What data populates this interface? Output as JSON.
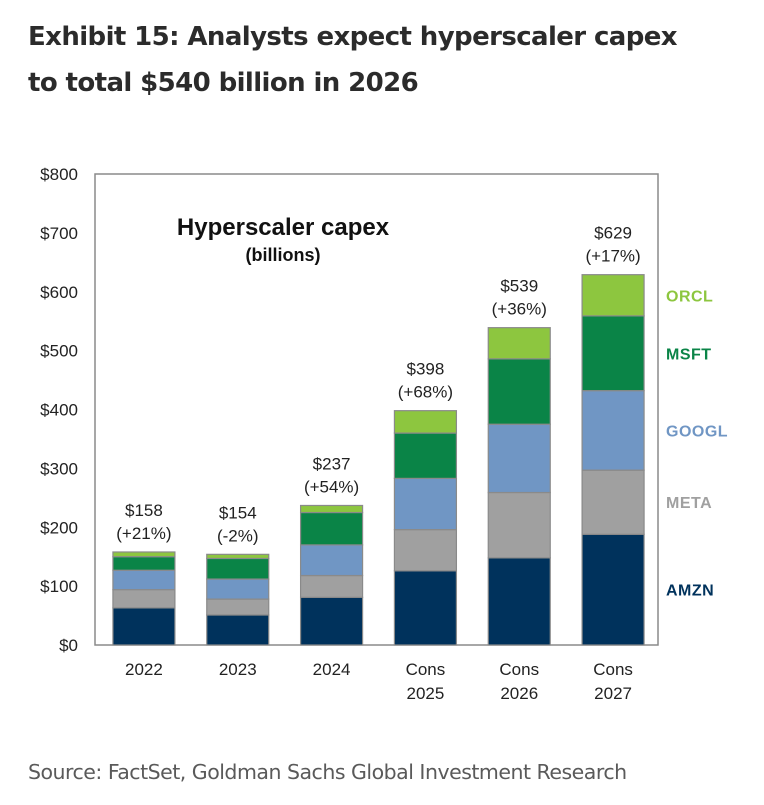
{
  "header": {
    "title_line1": "Exhibit 15: Analysts expect hyperscaler capex",
    "title_line2": "to total $540 billion in 2026"
  },
  "footer": {
    "source": "Source: FactSet, Goldman Sachs Global Investment Research"
  },
  "chart_data": {
    "type": "bar",
    "stacked": true,
    "title": "Hyperscaler capex",
    "subtitle": "(billions)",
    "xlabel": "",
    "ylabel": "",
    "ylim": [
      0,
      800
    ],
    "yticks": [
      0,
      100,
      200,
      300,
      400,
      500,
      600,
      700,
      800
    ],
    "ytick_labels": [
      "$0",
      "$100",
      "$200",
      "$300",
      "$400",
      "$500",
      "$600",
      "$700",
      "$800"
    ],
    "grid": false,
    "legend_position": "right",
    "categories": [
      [
        "2022"
      ],
      [
        "2023"
      ],
      [
        "2024"
      ],
      [
        "Cons",
        "2025"
      ],
      [
        "Cons",
        "2026"
      ],
      [
        "Cons",
        "2027"
      ]
    ],
    "series": [
      {
        "name": "AMZN",
        "color": "#00325c",
        "values": [
          63,
          51,
          81,
          126,
          148,
          188
        ]
      },
      {
        "name": "META",
        "color": "#a0a0a0",
        "values": [
          31,
          27,
          37,
          70,
          111,
          109
        ]
      },
      {
        "name": "GOOGL",
        "color": "#7096c4",
        "values": [
          33,
          34,
          52,
          87,
          116,
          135
        ]
      },
      {
        "name": "MSFT",
        "color": "#0a8447",
        "values": [
          23,
          35,
          55,
          77,
          111,
          127
        ]
      },
      {
        "name": "ORCL",
        "color": "#8dc63f",
        "values": [
          8,
          7,
          12,
          38,
          53,
          70
        ]
      }
    ],
    "totals": [
      158,
      154,
      237,
      398,
      539,
      629
    ],
    "total_labels": [
      "$158",
      "$154",
      "$237",
      "$398",
      "$539",
      "$629"
    ],
    "growth_labels": [
      "(+21%)",
      "(-2%)",
      "(+54%)",
      "(+68%)",
      "(+36%)",
      "(+17%)"
    ]
  }
}
